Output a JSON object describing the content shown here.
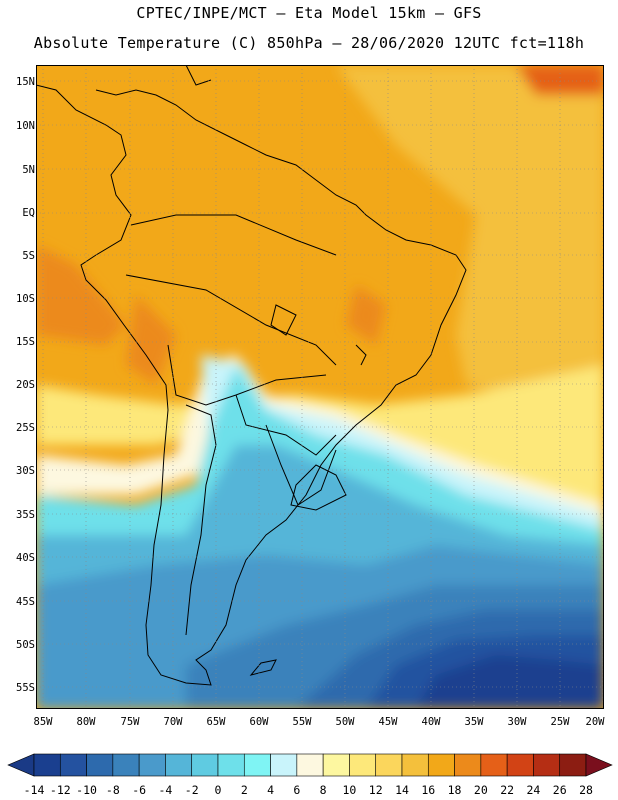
{
  "header": {
    "line1": "CPTEC/INPE/MCT –  Eta Model 15km – GFS",
    "line2": "Absolute Temperature (C) 850hPa – 28/06/2020 12UTC fct=118h"
  },
  "map": {
    "lat_labels": [
      "15N",
      "10N",
      "5N",
      "EQ",
      "5S",
      "10S",
      "15S",
      "20S",
      "25S",
      "30S",
      "35S",
      "40S",
      "45S",
      "50S",
      "55S"
    ],
    "lon_labels": [
      "85W",
      "80W",
      "75W",
      "70W",
      "65W",
      "60W",
      "55W",
      "50W",
      "45W",
      "40W",
      "35W",
      "30W",
      "25W",
      "20W"
    ],
    "lat_range": [
      16,
      -57
    ],
    "lon_range": [
      -85.5,
      -20
    ],
    "grid_lines": "dotted"
  },
  "colorbar": {
    "labels": [
      "-14",
      "-12",
      "-10",
      "-8",
      "-6",
      "-4",
      "-2",
      "0",
      "2",
      "4",
      "6",
      "8",
      "10",
      "12",
      "14",
      "16",
      "18",
      "20",
      "22",
      "24",
      "26",
      "28"
    ],
    "colors": [
      "#1a3f8f",
      "#2452a0",
      "#2d6aad",
      "#3a82bb",
      "#4a9acb",
      "#55b5d8",
      "#5fcbe1",
      "#6ee0ea",
      "#7ff4f4",
      "#c9f4fb",
      "#fdf8e0",
      "#fdf7a0",
      "#fde87a",
      "#fbd65c",
      "#f4c03c",
      "#f2a819",
      "#ec8a1b",
      "#e56018",
      "#d24315",
      "#b52e14",
      "#8c1d12"
    ],
    "end_left": "#1a3a86",
    "end_right": "#7a0f1d"
  }
}
